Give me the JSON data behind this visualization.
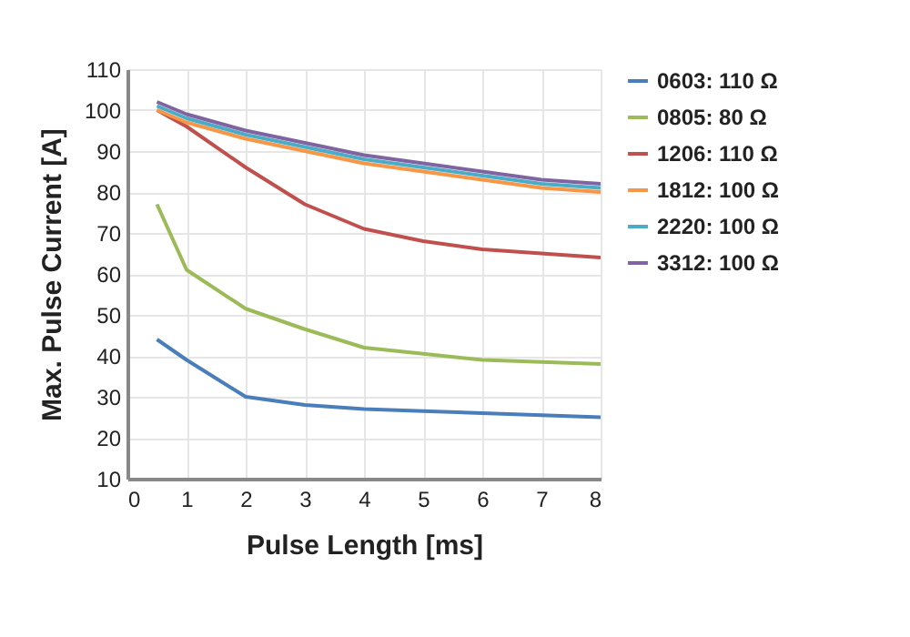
{
  "chart_data": {
    "type": "line",
    "xlabel": "Pulse Length [ms]",
    "ylabel": "Max. Pulse Current [A]",
    "x": [
      0.5,
      1,
      2,
      3,
      4,
      5,
      6,
      7,
      8
    ],
    "xlim": [
      0,
      8
    ],
    "xticks": [
      0,
      1,
      2,
      3,
      4,
      5,
      6,
      7,
      8
    ],
    "ylim": [
      10,
      110
    ],
    "yticks": [
      10,
      20,
      30,
      40,
      50,
      60,
      70,
      80,
      90,
      100,
      110
    ],
    "grid": true,
    "legend": "right",
    "marker": "none",
    "line_style": "solid",
    "series": [
      {
        "name": "0603: 110 Ω",
        "color": "#4a7ebb",
        "values": [
          44,
          39,
          30,
          28,
          27,
          26.5,
          26,
          25.5,
          25
        ]
      },
      {
        "name": "0805: 80 Ω",
        "color": "#9bbb59",
        "values": [
          77,
          61,
          51.5,
          46.5,
          42,
          40.5,
          39,
          38.5,
          38
        ]
      },
      {
        "name": "1206: 110 Ω",
        "color": "#c0504d",
        "values": [
          100,
          96,
          86,
          77,
          71,
          68,
          66,
          65,
          64
        ]
      },
      {
        "name": "1812: 100 Ω",
        "color": "#f79646",
        "values": [
          100,
          97,
          93,
          90,
          87,
          85,
          83,
          81,
          80
        ]
      },
      {
        "name": "2220: 100 Ω",
        "color": "#4bacc6",
        "values": [
          101,
          98,
          94,
          91,
          88,
          86,
          84,
          82,
          81
        ]
      },
      {
        "name": "3312: 100 Ω",
        "color": "#8064a2",
        "values": [
          102,
          99,
          95,
          92,
          89,
          87,
          85,
          83,
          82
        ]
      }
    ]
  }
}
